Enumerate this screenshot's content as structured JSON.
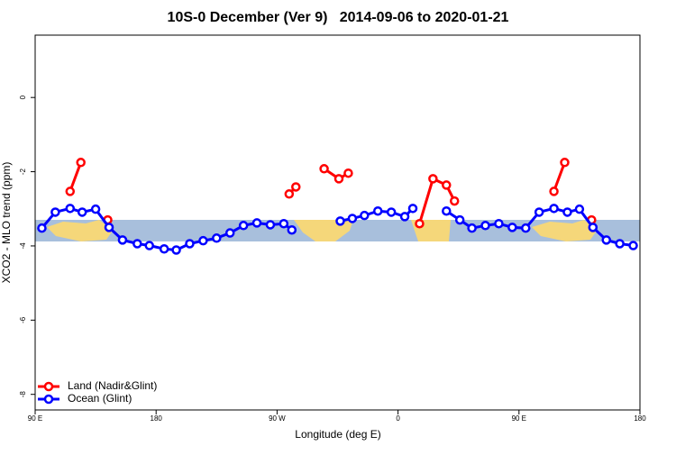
{
  "chart_data": {
    "type": "line",
    "title": "10S-0 December (Ver 9)   2014-09-06 to 2020-01-21",
    "x_label": "Longitude (deg E)",
    "y_label": "XCO2 - MLO trend (ppm)",
    "xlim": [
      90,
      540
    ],
    "ylim": [
      -8.42,
      1.68
    ],
    "xticks": [
      {
        "value": 90,
        "label": "90 E"
      },
      {
        "value": 180,
        "label": "180"
      },
      {
        "value": 270,
        "label": "90 W"
      },
      {
        "value": 360,
        "label": "0"
      },
      {
        "value": 450,
        "label": "90 E"
      },
      {
        "value": 540,
        "label": "180"
      }
    ],
    "yticks": [
      0,
      -2,
      -4,
      -6,
      -8
    ],
    "legend_position": "bottom-left",
    "series": [
      {
        "name": "Land (Nadir&Glint)",
        "color": "#ff0000",
        "x": [
          116,
          124,
          null,
          144,
          null,
          279,
          284,
          null,
          305,
          316,
          323,
          null,
          376,
          386,
          396,
          402,
          null,
          476,
          484,
          null,
          504
        ],
        "values": [
          -2.53,
          -1.75,
          null,
          -3.3,
          null,
          -2.6,
          -2.41,
          null,
          -1.92,
          -2.19,
          -2.04,
          null,
          -3.4,
          -2.19,
          -2.36,
          -2.79,
          null,
          -2.53,
          -1.75,
          null,
          -3.3
        ]
      },
      {
        "name": "Ocean (Glint)",
        "color": "#0000ff",
        "x": [
          95,
          105,
          116,
          125,
          135,
          145,
          155,
          166,
          175,
          186,
          195,
          205,
          215,
          225,
          235,
          245,
          255,
          265,
          275,
          281,
          null,
          317,
          326,
          335,
          345,
          355,
          365,
          371,
          null,
          396,
          406,
          415,
          425,
          435,
          445,
          455,
          465,
          476,
          486,
          495,
          505,
          515,
          525,
          535
        ],
        "values": [
          -3.52,
          -3.09,
          -2.99,
          -3.09,
          -3.01,
          -3.5,
          -3.84,
          -3.94,
          -3.99,
          -4.08,
          -4.11,
          -3.94,
          -3.86,
          -3.79,
          -3.65,
          -3.45,
          -3.38,
          -3.43,
          -3.4,
          -3.57,
          null,
          -3.33,
          -3.26,
          -3.18,
          -3.06,
          -3.09,
          -3.21,
          -2.99,
          null,
          -3.06,
          -3.3,
          -3.52,
          -3.45,
          -3.4,
          -3.5,
          -3.52,
          -3.09,
          -2.99,
          -3.09,
          -3.01,
          -3.5,
          -3.84,
          -3.94,
          -3.99
        ]
      }
    ]
  }
}
